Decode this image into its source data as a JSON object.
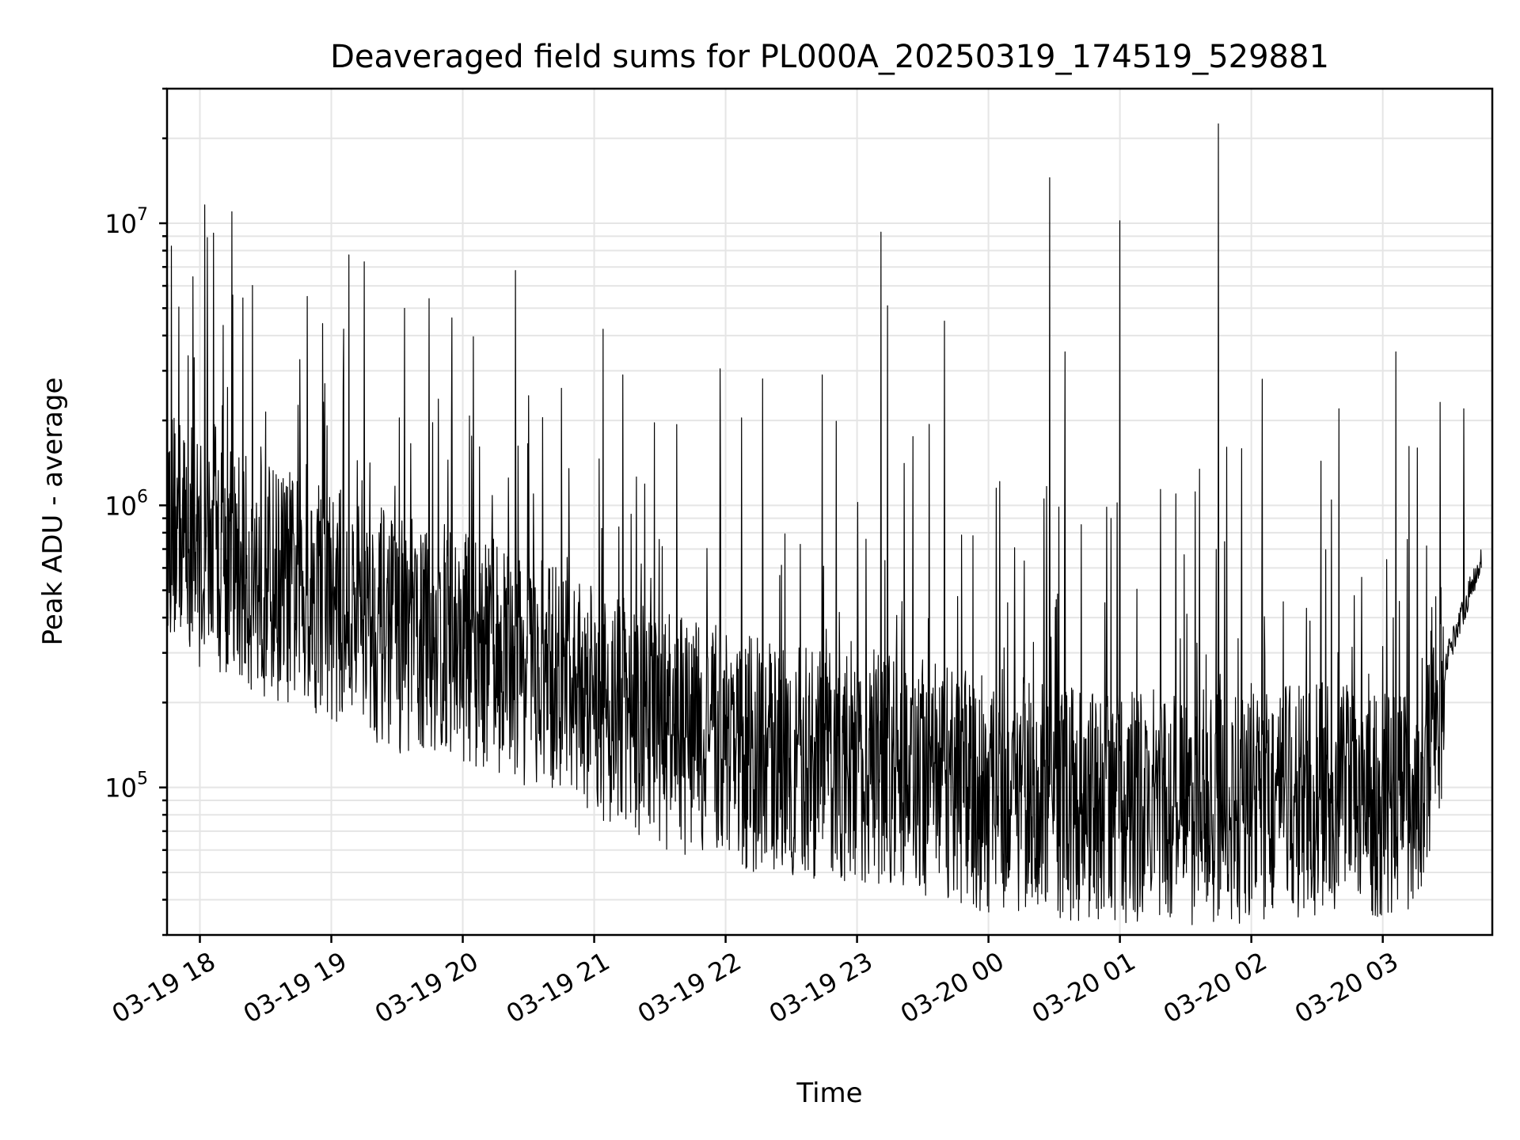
{
  "chart_data": {
    "type": "line",
    "title": "Deaveraged field sums for PL000A_20250319_174519_529881",
    "xlabel": "Time",
    "ylabel": "Peak ADU - average",
    "yscale": "log",
    "xlim": [
      "2025-03-19 17:45",
      "2025-03-20 03:50"
    ],
    "ylim": [
      30000,
      30000000
    ],
    "grid": true,
    "line_color": "#000000",
    "x_ticks": [
      "2025-03-19 18:00",
      "2025-03-19 19:00",
      "2025-03-19 20:00",
      "2025-03-19 21:00",
      "2025-03-19 22:00",
      "2025-03-19 23:00",
      "2025-03-20 00:00",
      "2025-03-20 01:00",
      "2025-03-20 02:00",
      "2025-03-20 03:00"
    ],
    "x_tick_labels": [
      "03-19 18",
      "03-19 19",
      "03-19 20",
      "03-19 21",
      "03-19 22",
      "03-19 23",
      "03-20 00",
      "03-20 01",
      "03-20 02",
      "03-20 03"
    ],
    "y_ticks": [
      100000,
      1000000,
      10000000
    ],
    "y_tick_labels": [
      {
        "base": "10",
        "exp": "5"
      },
      {
        "base": "10",
        "exp": "6"
      },
      {
        "base": "10",
        "exp": "7"
      }
    ],
    "series": [
      {
        "x": [
          "2025-03-19 17:45",
          "2025-03-19 18:00",
          "2025-03-19 18:15",
          "2025-03-19 18:30",
          "2025-03-19 18:45",
          "2025-03-19 19:00",
          "2025-03-19 19:15",
          "2025-03-19 19:30",
          "2025-03-19 19:45",
          "2025-03-19 20:00",
          "2025-03-19 20:15",
          "2025-03-19 20:30",
          "2025-03-19 20:45",
          "2025-03-19 21:00",
          "2025-03-19 21:15",
          "2025-03-19 21:30",
          "2025-03-19 21:45",
          "2025-03-19 22:00",
          "2025-03-19 22:15",
          "2025-03-19 22:30",
          "2025-03-19 22:45",
          "2025-03-19 23:00",
          "2025-03-19 23:15",
          "2025-03-19 23:30",
          "2025-03-19 23:45",
          "2025-03-20 00:00",
          "2025-03-20 00:15",
          "2025-03-20 00:30",
          "2025-03-20 00:45",
          "2025-03-20 01:00",
          "2025-03-20 01:15",
          "2025-03-20 01:30",
          "2025-03-20 01:45",
          "2025-03-20 02:00",
          "2025-03-20 02:15",
          "2025-03-20 02:30",
          "2025-03-20 02:45",
          "2025-03-20 03:00",
          "2025-03-20 03:15",
          "2025-03-20 03:30",
          "2025-03-20 03:45"
        ],
        "baseline": [
          900000,
          700000,
          600000,
          550000,
          500000,
          450000,
          400000,
          350000,
          330000,
          320000,
          300000,
          260000,
          230000,
          200000,
          180000,
          160000,
          150000,
          140000,
          130000,
          125000,
          120000,
          115000,
          120000,
          110000,
          100000,
          95000,
          95000,
          90000,
          88000,
          85000,
          85000,
          85000,
          85000,
          85000,
          90000,
          90000,
          90000,
          90000,
          95000,
          300000,
          650000
        ],
        "spikes": [
          {
            "x": "2025-03-19 17:47",
            "y": 8300000
          },
          {
            "x": "2025-03-19 18:49",
            "y": 5500000
          },
          {
            "x": "2025-03-19 18:57",
            "y": 2700000
          },
          {
            "x": "2025-03-19 19:15",
            "y": 7300000
          },
          {
            "x": "2025-03-19 20:24",
            "y": 6800000
          },
          {
            "x": "2025-03-19 20:45",
            "y": 2600000
          },
          {
            "x": "2025-03-19 21:13",
            "y": 2900000
          },
          {
            "x": "2025-03-19 22:44",
            "y": 2900000
          },
          {
            "x": "2025-03-19 23:11",
            "y": 9300000
          },
          {
            "x": "2025-03-19 23:14",
            "y": 5100000
          },
          {
            "x": "2025-03-19 23:40",
            "y": 4500000
          },
          {
            "x": "2025-03-20 00:28",
            "y": 14500000
          },
          {
            "x": "2025-03-20 00:35",
            "y": 3500000
          },
          {
            "x": "2025-03-20 01:00",
            "y": 10200000
          },
          {
            "x": "2025-03-20 01:45",
            "y": 22500000
          },
          {
            "x": "2025-03-20 02:05",
            "y": 2800000
          },
          {
            "x": "2025-03-20 02:40",
            "y": 2200000
          },
          {
            "x": "2025-03-20 03:06",
            "y": 3500000
          },
          {
            "x": "2025-03-20 03:37",
            "y": 2200000
          }
        ]
      }
    ]
  }
}
